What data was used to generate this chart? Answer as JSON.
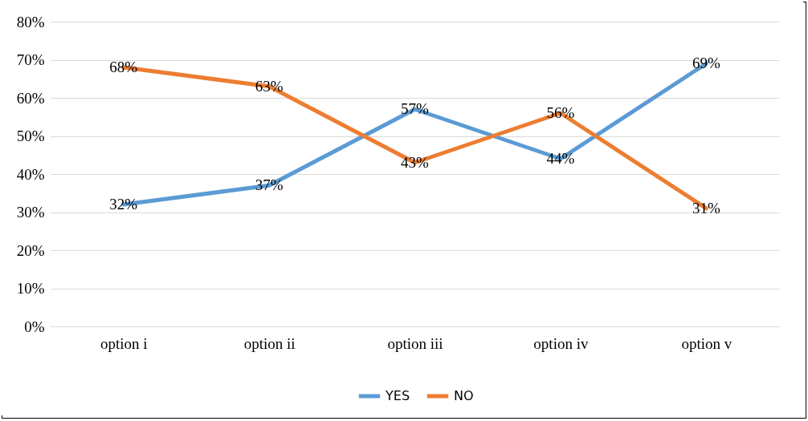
{
  "chart_data": {
    "type": "line",
    "categories": [
      "option i",
      "option ii",
      "option iii",
      "option iv",
      "option v"
    ],
    "series": [
      {
        "name": "YES",
        "color": "#5b9bd5",
        "values": [
          32,
          37,
          57,
          44,
          69
        ],
        "value_labels": [
          "32%",
          "37%",
          "57%",
          "44%",
          "69%"
        ]
      },
      {
        "name": "NO",
        "color": "#ed7d31",
        "values": [
          68,
          63,
          43,
          56,
          31
        ],
        "value_labels": [
          "68%",
          "63%",
          "43%",
          "56%",
          "31%"
        ]
      }
    ],
    "ylim": [
      0,
      80
    ],
    "yticks": [
      {
        "value": 0,
        "label": "0%"
      },
      {
        "value": 10,
        "label": "10%"
      },
      {
        "value": 20,
        "label": "20%"
      },
      {
        "value": 30,
        "label": "30%"
      },
      {
        "value": 40,
        "label": "40%"
      },
      {
        "value": 50,
        "label": "50%"
      },
      {
        "value": 60,
        "label": "60%"
      },
      {
        "value": 70,
        "label": "70%"
      },
      {
        "value": 80,
        "label": "80%"
      }
    ],
    "grid": "y",
    "legend": "bottom",
    "marker": "none",
    "line_style": "solid"
  }
}
